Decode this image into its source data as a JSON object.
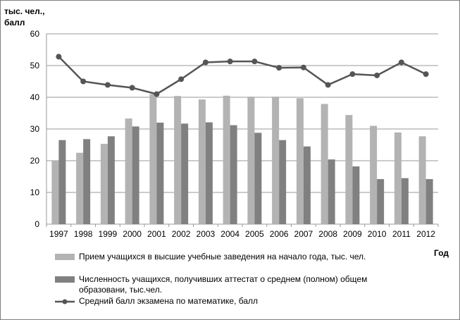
{
  "chart_data": {
    "type": "bar",
    "title": "",
    "ylabel": "тыс. чел., балл",
    "xlabel": "Год",
    "ylim": [
      0,
      60
    ],
    "yticks": [
      0,
      10,
      20,
      30,
      40,
      50,
      60
    ],
    "grid": true,
    "legend_position": "bottom",
    "categories": [
      "1997",
      "1998",
      "1999",
      "2000",
      "2001",
      "2002",
      "2003",
      "2004",
      "2005",
      "2006",
      "2007",
      "2008",
      "2009",
      "2010",
      "2011",
      "2012"
    ],
    "series": [
      {
        "name": "Прием учащихся в высшие учебные заведения на начало года, тыс. чел.",
        "type": "bar",
        "color": "#b3b3b3",
        "values": [
          20,
          22.5,
          25.3,
          33.3,
          41,
          40.4,
          39.3,
          40.5,
          40.2,
          40.2,
          39.7,
          37.9,
          34.4,
          31,
          28.9,
          27.7
        ]
      },
      {
        "name": "Численность учащихся, получивших аттестат о среднем (полном) общем образовани, тыс.чел.",
        "type": "bar",
        "color": "#808080",
        "values": [
          26.5,
          26.8,
          27.7,
          30.8,
          32,
          31.7,
          32.1,
          31.2,
          28.8,
          26.5,
          24.5,
          20.4,
          18.2,
          14.2,
          14.5,
          14.2
        ]
      },
      {
        "name": "Средний балл экзамена по математике, балл",
        "type": "line",
        "color": "#555555",
        "values": [
          52.8,
          45,
          43.9,
          43,
          41,
          45.7,
          51,
          51.3,
          51.3,
          49.3,
          49.4,
          43.9,
          47.3,
          46.9,
          51,
          47.3
        ]
      }
    ]
  },
  "legend_line2_wrap": "образовани, тыс.чел."
}
